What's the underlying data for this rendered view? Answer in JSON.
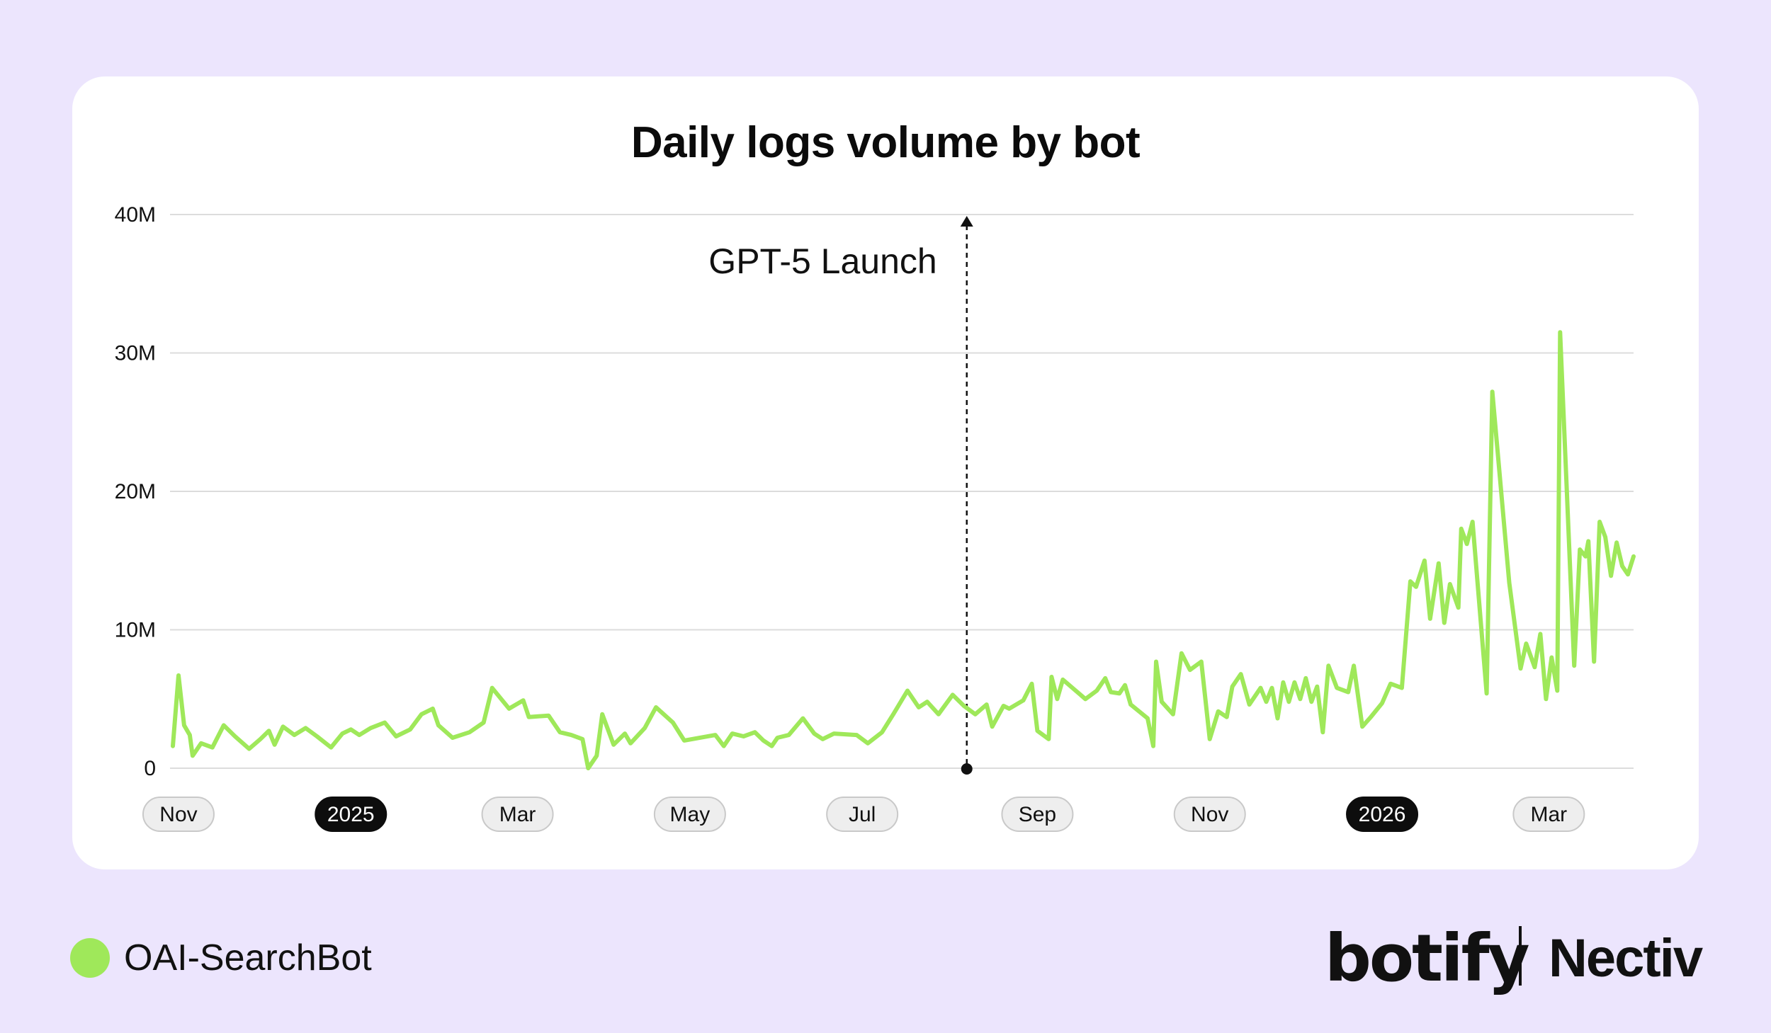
{
  "colors": {
    "background": "#ece5fd",
    "series": "#9fe85a",
    "grid": "#dcdcdc",
    "text": "#111111"
  },
  "legend": {
    "label": "OAI-SearchBot"
  },
  "brands": {
    "left": "botify",
    "right": "Nectiv"
  },
  "chart_data": {
    "type": "line",
    "title": "Daily logs volume by bot",
    "xlabel": "",
    "ylabel": "",
    "ylim": [
      0,
      40
    ],
    "y_unit": "M",
    "yticks": [
      {
        "value": 0,
        "label": "0"
      },
      {
        "value": 10,
        "label": "10M"
      },
      {
        "value": 20,
        "label": "20M"
      },
      {
        "value": 30,
        "label": "30M"
      },
      {
        "value": 40,
        "label": "40M"
      }
    ],
    "xlim": [
      "2024-10-29",
      "2026-03-31"
    ],
    "xticks": [
      {
        "date": "2024-11-01",
        "label": "Nov",
        "highlight": false
      },
      {
        "date": "2025-01-01",
        "label": "2025",
        "highlight": true
      },
      {
        "date": "2025-03-01",
        "label": "Mar",
        "highlight": false
      },
      {
        "date": "2025-05-01",
        "label": "May",
        "highlight": false
      },
      {
        "date": "2025-07-01",
        "label": "Jul",
        "highlight": false
      },
      {
        "date": "2025-09-01",
        "label": "Sep",
        "highlight": false
      },
      {
        "date": "2025-11-01",
        "label": "Nov",
        "highlight": false
      },
      {
        "date": "2026-01-01",
        "label": "2026",
        "highlight": true
      },
      {
        "date": "2026-03-01",
        "label": "Mar",
        "highlight": false
      }
    ],
    "grid": true,
    "legend_position": "bottom-left",
    "annotations": [
      {
        "date": "2025-08-07",
        "label": "GPT-5 Launch"
      }
    ],
    "series": [
      {
        "name": "OAI-SearchBot",
        "color": "#9fe85a",
        "points": [
          [
            "2024-10-30",
            1.6
          ],
          [
            "2024-11-01",
            6.7
          ],
          [
            "2024-11-03",
            3.1
          ],
          [
            "2024-11-05",
            2.4
          ],
          [
            "2024-11-06",
            0.9
          ],
          [
            "2024-11-09",
            1.8
          ],
          [
            "2024-11-13",
            1.5
          ],
          [
            "2024-11-17",
            3.1
          ],
          [
            "2024-11-21",
            2.3
          ],
          [
            "2024-11-26",
            1.4
          ],
          [
            "2024-11-30",
            2.1
          ],
          [
            "2024-12-03",
            2.7
          ],
          [
            "2024-12-05",
            1.7
          ],
          [
            "2024-12-08",
            3.0
          ],
          [
            "2024-12-12",
            2.4
          ],
          [
            "2024-12-16",
            2.9
          ],
          [
            "2024-12-20",
            2.3
          ],
          [
            "2024-12-25",
            1.5
          ],
          [
            "2024-12-29",
            2.5
          ],
          [
            "2025-01-01",
            2.8
          ],
          [
            "2025-01-04",
            2.4
          ],
          [
            "2025-01-08",
            2.9
          ],
          [
            "2025-01-13",
            3.3
          ],
          [
            "2025-01-17",
            2.3
          ],
          [
            "2025-01-22",
            2.8
          ],
          [
            "2025-01-26",
            3.9
          ],
          [
            "2025-01-30",
            4.3
          ],
          [
            "2025-02-01",
            3.1
          ],
          [
            "2025-02-06",
            2.2
          ],
          [
            "2025-02-12",
            2.6
          ],
          [
            "2025-02-17",
            3.3
          ],
          [
            "2025-02-20",
            5.8
          ],
          [
            "2025-02-26",
            4.3
          ],
          [
            "2025-03-03",
            4.9
          ],
          [
            "2025-03-05",
            3.7
          ],
          [
            "2025-03-12",
            3.8
          ],
          [
            "2025-03-16",
            2.6
          ],
          [
            "2025-03-20",
            2.4
          ],
          [
            "2025-03-24",
            2.1
          ],
          [
            "2025-03-26",
            0.0
          ],
          [
            "2025-03-29",
            0.9
          ],
          [
            "2025-03-31",
            3.9
          ],
          [
            "2025-04-04",
            1.7
          ],
          [
            "2025-04-08",
            2.5
          ],
          [
            "2025-04-10",
            1.8
          ],
          [
            "2025-04-15",
            2.9
          ],
          [
            "2025-04-19",
            4.4
          ],
          [
            "2025-04-25",
            3.3
          ],
          [
            "2025-04-29",
            2.0
          ],
          [
            "2025-05-10",
            2.4
          ],
          [
            "2025-05-13",
            1.6
          ],
          [
            "2025-05-16",
            2.5
          ],
          [
            "2025-05-20",
            2.3
          ],
          [
            "2025-05-24",
            2.6
          ],
          [
            "2025-05-27",
            2.0
          ],
          [
            "2025-05-30",
            1.6
          ],
          [
            "2025-06-01",
            2.2
          ],
          [
            "2025-06-05",
            2.4
          ],
          [
            "2025-06-10",
            3.6
          ],
          [
            "2025-06-14",
            2.5
          ],
          [
            "2025-06-17",
            2.1
          ],
          [
            "2025-06-21",
            2.5
          ],
          [
            "2025-06-29",
            2.4
          ],
          [
            "2025-07-03",
            1.8
          ],
          [
            "2025-07-08",
            2.6
          ],
          [
            "2025-07-12",
            3.9
          ],
          [
            "2025-07-17",
            5.6
          ],
          [
            "2025-07-21",
            4.4
          ],
          [
            "2025-07-24",
            4.8
          ],
          [
            "2025-07-28",
            3.9
          ],
          [
            "2025-08-02",
            5.3
          ],
          [
            "2025-08-06",
            4.5
          ],
          [
            "2025-08-10",
            3.9
          ],
          [
            "2025-08-14",
            4.6
          ],
          [
            "2025-08-16",
            3.0
          ],
          [
            "2025-08-20",
            4.5
          ],
          [
            "2025-08-22",
            4.3
          ],
          [
            "2025-08-27",
            4.9
          ],
          [
            "2025-08-30",
            6.1
          ],
          [
            "2025-09-01",
            2.7
          ],
          [
            "2025-09-05",
            2.1
          ],
          [
            "2025-09-06",
            6.6
          ],
          [
            "2025-09-08",
            5.0
          ],
          [
            "2025-09-10",
            6.4
          ],
          [
            "2025-09-14",
            5.7
          ],
          [
            "2025-09-18",
            5.0
          ],
          [
            "2025-09-22",
            5.6
          ],
          [
            "2025-09-25",
            6.5
          ],
          [
            "2025-09-27",
            5.5
          ],
          [
            "2025-09-30",
            5.4
          ],
          [
            "2025-10-02",
            6.0
          ],
          [
            "2025-10-04",
            4.6
          ],
          [
            "2025-10-10",
            3.6
          ],
          [
            "2025-10-12",
            1.6
          ],
          [
            "2025-10-13",
            7.7
          ],
          [
            "2025-10-15",
            4.8
          ],
          [
            "2025-10-19",
            3.9
          ],
          [
            "2025-10-22",
            8.3
          ],
          [
            "2025-10-25",
            7.1
          ],
          [
            "2025-10-29",
            7.7
          ],
          [
            "2025-11-01",
            2.1
          ],
          [
            "2025-11-04",
            4.1
          ],
          [
            "2025-11-07",
            3.7
          ],
          [
            "2025-11-09",
            5.9
          ],
          [
            "2025-11-12",
            6.8
          ],
          [
            "2025-11-15",
            4.6
          ],
          [
            "2025-11-19",
            5.8
          ],
          [
            "2025-11-21",
            4.8
          ],
          [
            "2025-11-23",
            5.8
          ],
          [
            "2025-11-25",
            3.6
          ],
          [
            "2025-11-27",
            6.2
          ],
          [
            "2025-11-29",
            4.8
          ],
          [
            "2025-12-01",
            6.2
          ],
          [
            "2025-12-03",
            5.0
          ],
          [
            "2025-12-05",
            6.5
          ],
          [
            "2025-12-07",
            4.8
          ],
          [
            "2025-12-09",
            5.9
          ],
          [
            "2025-12-11",
            2.6
          ],
          [
            "2025-12-13",
            7.4
          ],
          [
            "2025-12-16",
            5.8
          ],
          [
            "2025-12-20",
            5.5
          ],
          [
            "2025-12-22",
            7.4
          ],
          [
            "2025-12-25",
            3.0
          ],
          [
            "2025-12-28",
            3.7
          ],
          [
            "2026-01-01",
            4.7
          ],
          [
            "2026-01-04",
            6.1
          ],
          [
            "2026-01-08",
            5.8
          ],
          [
            "2026-01-11",
            13.5
          ],
          [
            "2026-01-13",
            13.1
          ],
          [
            "2026-01-16",
            15.0
          ],
          [
            "2026-01-18",
            10.8
          ],
          [
            "2026-01-21",
            14.8
          ],
          [
            "2026-01-23",
            10.5
          ],
          [
            "2026-01-25",
            13.3
          ],
          [
            "2026-01-28",
            11.6
          ],
          [
            "2026-01-29",
            17.3
          ],
          [
            "2026-01-31",
            16.2
          ],
          [
            "2026-02-02",
            17.8
          ],
          [
            "2026-02-07",
            5.4
          ],
          [
            "2026-02-09",
            27.2
          ],
          [
            "2026-02-15",
            13.4
          ],
          [
            "2026-02-19",
            7.2
          ],
          [
            "2026-02-21",
            9.0
          ],
          [
            "2026-02-24",
            7.3
          ],
          [
            "2026-02-26",
            9.7
          ],
          [
            "2026-02-28",
            5.0
          ],
          [
            "2026-03-02",
            8.0
          ],
          [
            "2026-03-04",
            5.6
          ],
          [
            "2026-03-05",
            31.5
          ],
          [
            "2026-03-10",
            7.4
          ],
          [
            "2026-03-12",
            15.8
          ],
          [
            "2026-03-14",
            15.3
          ],
          [
            "2026-03-15",
            16.4
          ],
          [
            "2026-03-17",
            7.7
          ],
          [
            "2026-03-19",
            17.8
          ],
          [
            "2026-03-21",
            16.7
          ],
          [
            "2026-03-23",
            13.9
          ],
          [
            "2026-03-25",
            16.3
          ],
          [
            "2026-03-27",
            14.6
          ],
          [
            "2026-03-29",
            14.0
          ],
          [
            "2026-03-31",
            15.3
          ]
        ]
      }
    ]
  }
}
